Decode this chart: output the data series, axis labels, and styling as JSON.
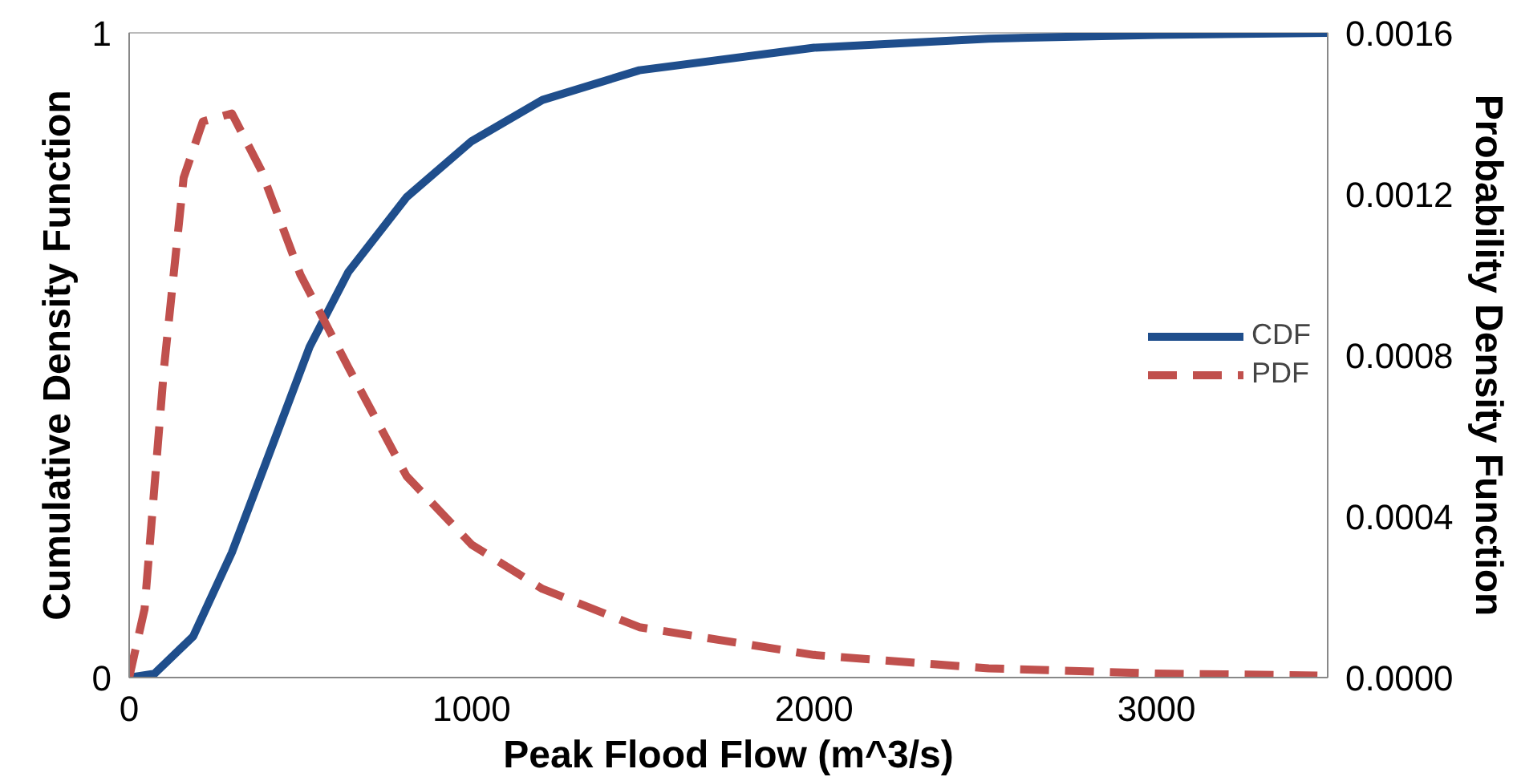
{
  "chart_data": {
    "type": "line",
    "xlabel": "Peak Flood Flow (m^3/s)",
    "ylabel": "Cumulative Density Function",
    "y2label": "Probability Density Function",
    "xlim": [
      0,
      3500
    ],
    "xticks": [
      0,
      1000,
      2000,
      3000
    ],
    "ylim": [
      0,
      1
    ],
    "yticks": [
      0,
      1
    ],
    "y2lim": [
      0,
      0.0016
    ],
    "y2ticks": [
      {
        "value": 0,
        "label": "0.0000"
      },
      {
        "value": 0.0004,
        "label": "0.0004"
      },
      {
        "value": 0.0008,
        "label": "0.0008"
      },
      {
        "value": 0.0012,
        "label": "0.0012"
      },
      {
        "value": 0.0016,
        "label": "0.0016"
      }
    ],
    "grid": false,
    "legend": "right",
    "marker": "none",
    "series": [
      {
        "name": "CDF",
        "color": "#1f4e8c",
        "line_style": "solid",
        "x": [
          0,
          74,
          187,
          300,
          414,
          527,
          640,
          810,
          1000,
          1207,
          1490,
          2000,
          2510,
          3000,
          3500
        ],
        "values": [
          0,
          0.006,
          0.064,
          0.194,
          0.354,
          0.513,
          0.629,
          0.745,
          0.832,
          0.896,
          0.942,
          0.977,
          0.991,
          0.997,
          1.0
        ]
      },
      {
        "name": "PDF",
        "color": "#c0504d",
        "line_style": "dashed",
        "axis": "y2",
        "x": [
          0,
          45,
          102,
          159,
          215,
          300,
          385,
          500,
          640,
          810,
          1000,
          1207,
          1490,
          2000,
          2510,
          3000,
          3470
        ],
        "values": [
          0,
          0.00017,
          0.00077,
          0.00124,
          0.00138,
          0.0014,
          0.00126,
          0.001,
          0.00077,
          0.0005,
          0.00033,
          0.00022,
          0.000125,
          5.6e-05,
          2.3e-05,
          1e-05,
          5e-06
        ]
      }
    ]
  }
}
